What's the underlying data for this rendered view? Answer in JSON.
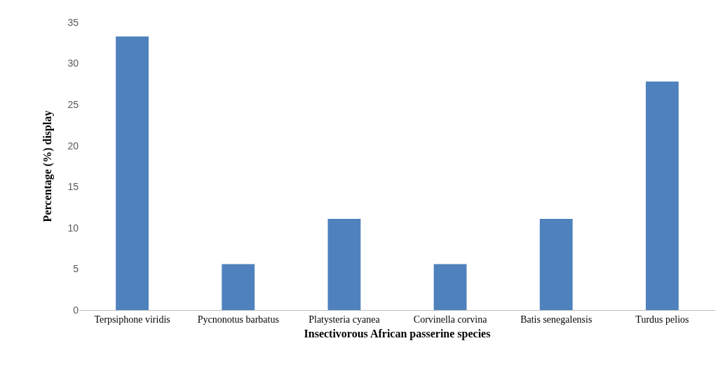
{
  "chart_data": {
    "type": "bar",
    "xlabel": "Insectivorous African passerine species",
    "ylabel": "Percentage (%) display",
    "categories": [
      "Terpsiphone viridis",
      "Pycnonotus barbatus",
      "Platysteria cyanea",
      "Corvinella corvina",
      "Batis senegalensis",
      "Turdus pelios"
    ],
    "values": [
      33.3,
      5.6,
      11.1,
      5.6,
      11.1,
      27.8
    ],
    "color": "#4f81bd",
    "ylim": [
      0,
      35
    ],
    "yticks": [
      0,
      5,
      10,
      15,
      20,
      25,
      30,
      35
    ]
  }
}
